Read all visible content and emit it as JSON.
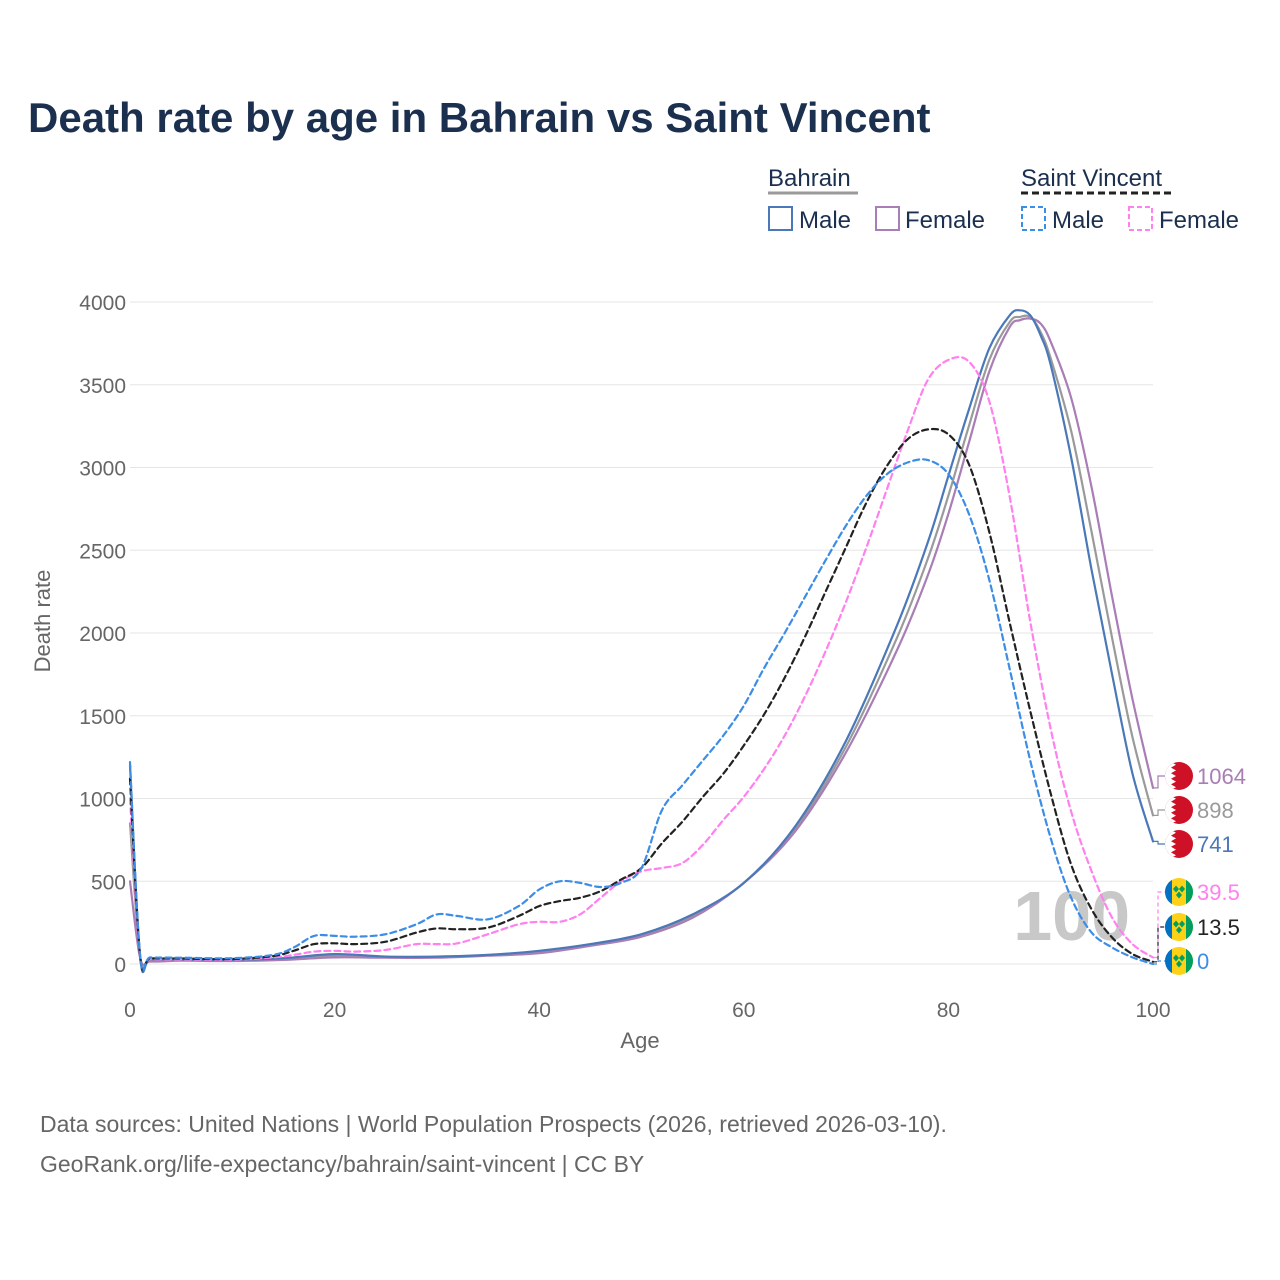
{
  "colors": {
    "bahrain_male": "#4a78b8",
    "bahrain_female": "#a97db5",
    "bahrain_total": "#9a9a9a",
    "sv_male": "#3c8de6",
    "sv_female": "#ff80ee",
    "sv_total": "#222222",
    "bahrain_flag": "#ce1126",
    "sv_flag_blue": "#0072c6",
    "sv_flag_yellow": "#fcd116",
    "sv_flag_green": "#009e60"
  },
  "legend": {
    "bahrain": {
      "title": "Bahrain",
      "male": "Male",
      "female": "Female"
    },
    "saint_vincent": {
      "title": "Saint Vincent",
      "male": "Male",
      "female": "Female"
    }
  },
  "end_labels": [
    {
      "text": "1064",
      "series": "bahrain_female",
      "flag": "bahrain",
      "value": 1064
    },
    {
      "text": "898",
      "series": "bahrain_total",
      "flag": "bahrain",
      "value": 898
    },
    {
      "text": "741",
      "series": "bahrain_male",
      "flag": "bahrain",
      "value": 741
    },
    {
      "text": "39.5",
      "series": "sv_female",
      "flag": "saint_vincent",
      "value": 39.5
    },
    {
      "text": "13.5",
      "series": "sv_total",
      "flag": "saint_vincent",
      "value": 13.5
    },
    {
      "text": "0",
      "series": "sv_male",
      "flag": "saint_vincent",
      "value": 0
    }
  ],
  "watermark": "100",
  "source_line1": "Data sources: United Nations | World Population Prospects (2026, retrieved 2026-03-10).",
  "source_line2": "GeoRank.org/life-expectancy/bahrain/saint-vincent | CC BY",
  "chart_data": {
    "type": "line",
    "title": "Death rate by age in Bahrain vs Saint Vincent",
    "xlabel": "Age",
    "ylabel": "Death rate",
    "xlim": [
      0,
      100
    ],
    "ylim": [
      0,
      4000
    ],
    "xticks": [
      0,
      20,
      40,
      60,
      80,
      100
    ],
    "yticks": [
      0,
      500,
      1000,
      1500,
      2000,
      2500,
      3000,
      3500,
      4000
    ],
    "grid": true,
    "series": [
      {
        "name": "Saint Vincent Male",
        "key": "sv_male",
        "dashed": true,
        "x": [
          0,
          1,
          2,
          5,
          10,
          14,
          16,
          18,
          20,
          22,
          25,
          28,
          30,
          32,
          35,
          38,
          40,
          42,
          44,
          46,
          48,
          50,
          52,
          54,
          56,
          58,
          60,
          62,
          64,
          66,
          68,
          70,
          72,
          74,
          76,
          78,
          80,
          82,
          84,
          86,
          88,
          90,
          92,
          94,
          96,
          98,
          100
        ],
        "y": [
          1220,
          50,
          40,
          38,
          35,
          55,
          100,
          170,
          170,
          165,
          180,
          240,
          300,
          290,
          270,
          350,
          450,
          500,
          490,
          465,
          490,
          580,
          930,
          1080,
          1230,
          1380,
          1560,
          1790,
          2000,
          2220,
          2440,
          2650,
          2830,
          2960,
          3030,
          3045,
          2960,
          2720,
          2320,
          1780,
          1230,
          760,
          400,
          190,
          100,
          40,
          0
        ]
      },
      {
        "name": "Saint Vincent Female",
        "key": "sv_female",
        "dashed": true,
        "x": [
          0,
          1,
          2,
          5,
          10,
          14,
          16,
          18,
          20,
          22,
          25,
          28,
          30,
          32,
          35,
          38,
          40,
          42,
          44,
          46,
          48,
          50,
          52,
          54,
          56,
          58,
          60,
          62,
          64,
          66,
          68,
          70,
          72,
          74,
          76,
          78,
          80,
          82,
          84,
          86,
          88,
          90,
          92,
          94,
          96,
          98,
          100
        ],
        "y": [
          1000,
          40,
          30,
          28,
          26,
          40,
          55,
          75,
          80,
          75,
          85,
          120,
          120,
          125,
          180,
          240,
          255,
          255,
          300,
          400,
          500,
          560,
          580,
          610,
          720,
          870,
          1010,
          1180,
          1380,
          1620,
          1890,
          2190,
          2520,
          2870,
          3220,
          3530,
          3650,
          3640,
          3400,
          2820,
          2070,
          1420,
          920,
          560,
          280,
          120,
          39.5
        ]
      },
      {
        "name": "Saint Vincent Total",
        "key": "sv_total",
        "dashed": true,
        "x": [
          0,
          1,
          2,
          5,
          10,
          14,
          16,
          18,
          20,
          22,
          25,
          28,
          30,
          32,
          35,
          38,
          40,
          42,
          44,
          46,
          48,
          50,
          52,
          54,
          56,
          58,
          60,
          62,
          64,
          66,
          68,
          70,
          72,
          74,
          76,
          78,
          80,
          82,
          84,
          86,
          88,
          90,
          92,
          94,
          96,
          98,
          100
        ],
        "y": [
          1120,
          45,
          35,
          33,
          30,
          48,
          80,
          120,
          125,
          120,
          135,
          190,
          215,
          210,
          220,
          290,
          350,
          380,
          400,
          440,
          510,
          580,
          730,
          860,
          1010,
          1150,
          1320,
          1510,
          1730,
          1980,
          2250,
          2520,
          2790,
          3010,
          3170,
          3230,
          3200,
          3020,
          2610,
          2060,
          1530,
          1030,
          600,
          330,
          160,
          60,
          13.5
        ]
      },
      {
        "name": "Bahrain Male",
        "key": "bahrain_male",
        "dashed": false,
        "x": [
          0,
          1,
          2,
          5,
          10,
          15,
          20,
          25,
          30,
          35,
          40,
          45,
          50,
          55,
          60,
          65,
          70,
          75,
          78,
          80,
          82,
          84,
          86,
          87,
          88,
          89,
          90,
          92,
          94,
          96,
          98,
          100
        ],
        "y": [
          1200,
          40,
          30,
          28,
          25,
          35,
          60,
          45,
          45,
          55,
          80,
          120,
          180,
          300,
          490,
          830,
          1350,
          2050,
          2550,
          2950,
          3350,
          3720,
          3920,
          3950,
          3920,
          3800,
          3620,
          3060,
          2380,
          1750,
          1150,
          741
        ]
      },
      {
        "name": "Bahrain Female",
        "key": "bahrain_female",
        "dashed": false,
        "x": [
          0,
          1,
          2,
          5,
          10,
          15,
          20,
          25,
          30,
          35,
          40,
          45,
          50,
          55,
          60,
          65,
          70,
          75,
          78,
          80,
          82,
          84,
          86,
          87,
          88,
          89,
          90,
          92,
          94,
          96,
          98,
          100
        ],
        "y": [
          500,
          35,
          15,
          20,
          18,
          25,
          40,
          38,
          38,
          50,
          65,
          110,
          165,
          280,
          490,
          800,
          1280,
          1900,
          2350,
          2720,
          3150,
          3580,
          3850,
          3890,
          3900,
          3870,
          3760,
          3420,
          2880,
          2220,
          1600,
          1064
        ]
      },
      {
        "name": "Bahrain Total",
        "key": "bahrain_total",
        "dashed": false,
        "x": [
          0,
          1,
          2,
          5,
          10,
          15,
          20,
          25,
          30,
          35,
          40,
          45,
          50,
          55,
          60,
          65,
          70,
          75,
          78,
          80,
          82,
          84,
          86,
          87,
          88,
          89,
          90,
          92,
          94,
          96,
          98,
          100
        ],
        "y": [
          850,
          38,
          22,
          24,
          22,
          30,
          50,
          42,
          42,
          53,
          73,
          115,
          173,
          290,
          490,
          815,
          1315,
          1975,
          2450,
          2830,
          3250,
          3650,
          3880,
          3910,
          3910,
          3820,
          3660,
          3220,
          2610,
          1970,
          1370,
          898
        ]
      }
    ]
  }
}
